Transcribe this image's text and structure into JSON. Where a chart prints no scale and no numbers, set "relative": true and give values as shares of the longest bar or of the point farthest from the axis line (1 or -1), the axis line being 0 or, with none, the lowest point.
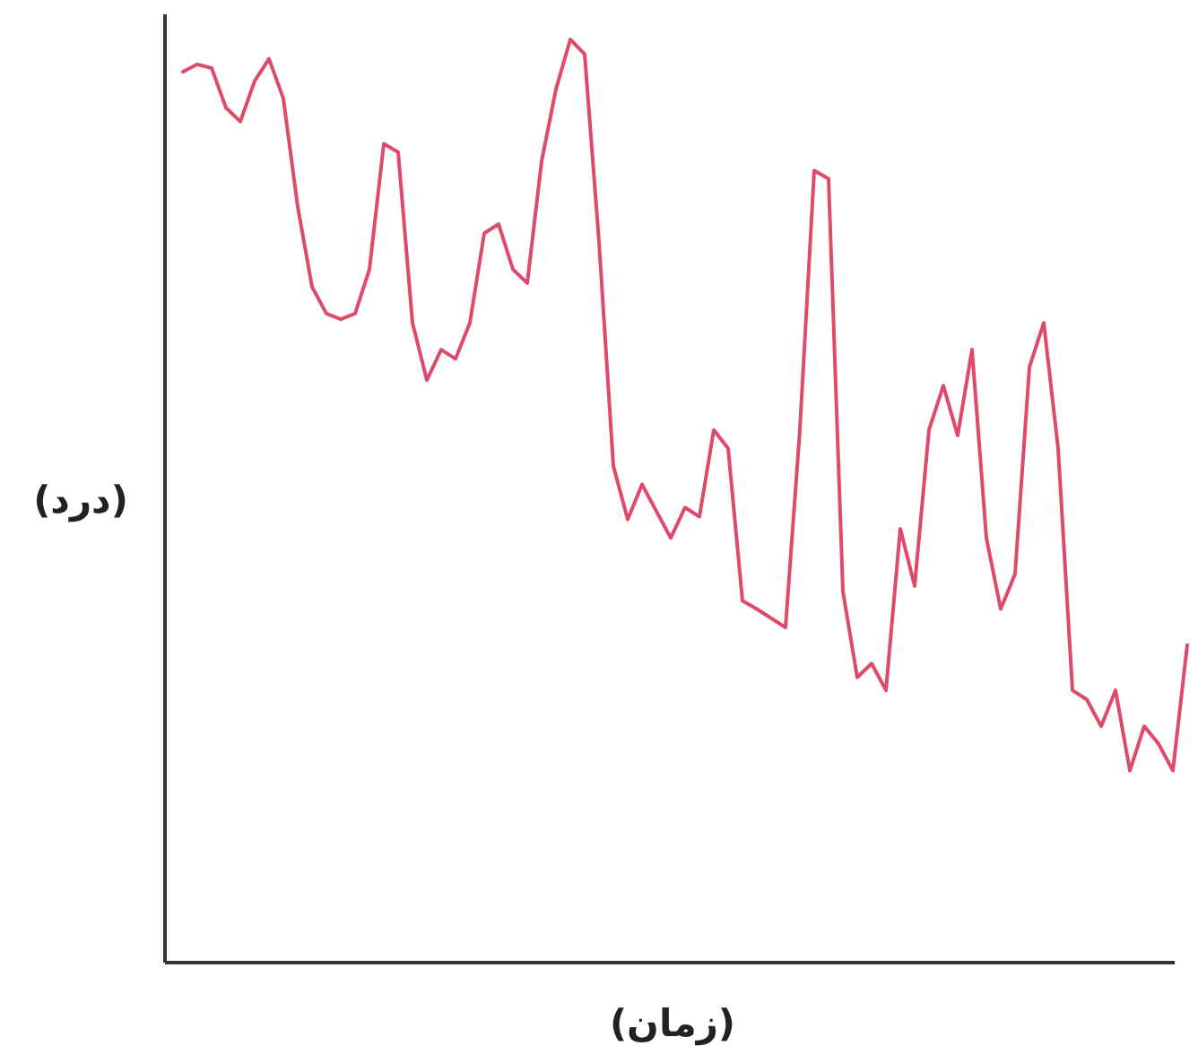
{
  "chart_data": {
    "type": "line",
    "relative": true,
    "xlabel": "(زمان)",
    "ylabel": "(درد)",
    "color": "#e04a6a",
    "categories": [
      null,
      null,
      null,
      null,
      null,
      null,
      null,
      null,
      null,
      null,
      null,
      null,
      null,
      null,
      null,
      null,
      null,
      null,
      null,
      null,
      null,
      null,
      null,
      null,
      null,
      null,
      null,
      null,
      null,
      null,
      null,
      null,
      null,
      null,
      null,
      null,
      null,
      null,
      null,
      null,
      null,
      null,
      null,
      null,
      null,
      null,
      null,
      null,
      null,
      null,
      null,
      null,
      null,
      null,
      null,
      null,
      null,
      null,
      null,
      null,
      null,
      null,
      null,
      null,
      null,
      null,
      null,
      null,
      null,
      null,
      null
    ],
    "values": [
      0.965,
      0.973,
      0.969,
      0.926,
      0.911,
      0.955,
      0.979,
      0.936,
      0.819,
      0.732,
      0.703,
      0.697,
      0.703,
      0.751,
      0.887,
      0.878,
      0.693,
      0.631,
      0.664,
      0.654,
      0.693,
      0.79,
      0.8,
      0.751,
      0.736,
      0.868,
      0.946,
      1.0,
      0.984,
      0.781,
      0.538,
      0.48,
      0.518,
      0.489,
      0.46,
      0.493,
      0.483,
      0.577,
      0.557,
      0.392,
      0.383,
      0.373,
      0.363,
      0.577,
      0.858,
      0.849,
      0.402,
      0.309,
      0.324,
      0.295,
      0.47,
      0.408,
      0.577,
      0.625,
      0.571,
      0.664,
      0.46,
      0.383,
      0.421,
      0.645,
      0.693,
      0.557,
      0.295,
      0.285,
      0.256,
      0.295,
      0.208,
      0.256,
      0.237,
      0.208,
      0.344
    ]
  }
}
